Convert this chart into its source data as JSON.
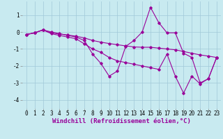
{
  "background_color": "#c8eaf0",
  "line_color": "#990099",
  "grid_color": "#a0c8d8",
  "xlabel": "Windchill (Refroidissement éolien,°C)",
  "xlabel_fontsize": 6.5,
  "tick_fontsize": 5.5,
  "xlim": [
    -0.5,
    23.5
  ],
  "ylim": [
    -4.5,
    1.8
  ],
  "yticks": [
    1,
    0,
    -1,
    -2,
    -3,
    -4
  ],
  "xticks": [
    0,
    1,
    2,
    3,
    4,
    5,
    6,
    7,
    8,
    9,
    10,
    11,
    12,
    13,
    14,
    15,
    16,
    17,
    18,
    19,
    20,
    21,
    22,
    23
  ],
  "series1": [
    [
      0,
      -0.15
    ],
    [
      1,
      -0.05
    ],
    [
      2,
      0.12
    ],
    [
      3,
      0.0
    ],
    [
      4,
      -0.1
    ],
    [
      5,
      -0.2
    ],
    [
      6,
      -0.3
    ],
    [
      7,
      -0.5
    ],
    [
      8,
      -1.3
    ],
    [
      9,
      -1.85
    ],
    [
      10,
      -2.6
    ],
    [
      11,
      -2.3
    ],
    [
      12,
      -0.85
    ],
    [
      13,
      -0.5
    ],
    [
      14,
      0.0
    ],
    [
      15,
      1.45
    ],
    [
      16,
      0.55
    ],
    [
      17,
      -0.05
    ],
    [
      18,
      -0.05
    ],
    [
      19,
      -1.25
    ],
    [
      20,
      -1.5
    ],
    [
      21,
      -3.0
    ],
    [
      22,
      -2.75
    ],
    [
      23,
      -1.5
    ]
  ],
  "series2": [
    [
      0,
      -0.15
    ],
    [
      1,
      -0.05
    ],
    [
      2,
      0.12
    ],
    [
      3,
      -0.05
    ],
    [
      4,
      -0.12
    ],
    [
      5,
      -0.18
    ],
    [
      6,
      -0.25
    ],
    [
      7,
      -0.35
    ],
    [
      8,
      -0.5
    ],
    [
      9,
      -0.6
    ],
    [
      10,
      -0.68
    ],
    [
      11,
      -0.75
    ],
    [
      12,
      -0.82
    ],
    [
      13,
      -0.88
    ],
    [
      14,
      -0.9
    ],
    [
      15,
      -0.9
    ],
    [
      16,
      -0.95
    ],
    [
      17,
      -1.0
    ],
    [
      18,
      -1.05
    ],
    [
      19,
      -1.15
    ],
    [
      20,
      -1.25
    ],
    [
      21,
      -1.35
    ],
    [
      22,
      -1.42
    ],
    [
      23,
      -1.5
    ]
  ],
  "series3": [
    [
      0,
      -0.15
    ],
    [
      1,
      -0.05
    ],
    [
      2,
      0.12
    ],
    [
      3,
      -0.1
    ],
    [
      4,
      -0.2
    ],
    [
      5,
      -0.3
    ],
    [
      6,
      -0.4
    ],
    [
      7,
      -0.7
    ],
    [
      8,
      -1.0
    ],
    [
      9,
      -1.2
    ],
    [
      10,
      -1.5
    ],
    [
      11,
      -1.7
    ],
    [
      12,
      -1.8
    ],
    [
      13,
      -1.9
    ],
    [
      14,
      -2.0
    ],
    [
      15,
      -2.1
    ],
    [
      16,
      -2.2
    ],
    [
      17,
      -1.3
    ],
    [
      18,
      -2.6
    ],
    [
      19,
      -3.6
    ],
    [
      20,
      -2.6
    ],
    [
      21,
      -3.05
    ],
    [
      22,
      -2.75
    ],
    [
      23,
      -1.5
    ]
  ]
}
